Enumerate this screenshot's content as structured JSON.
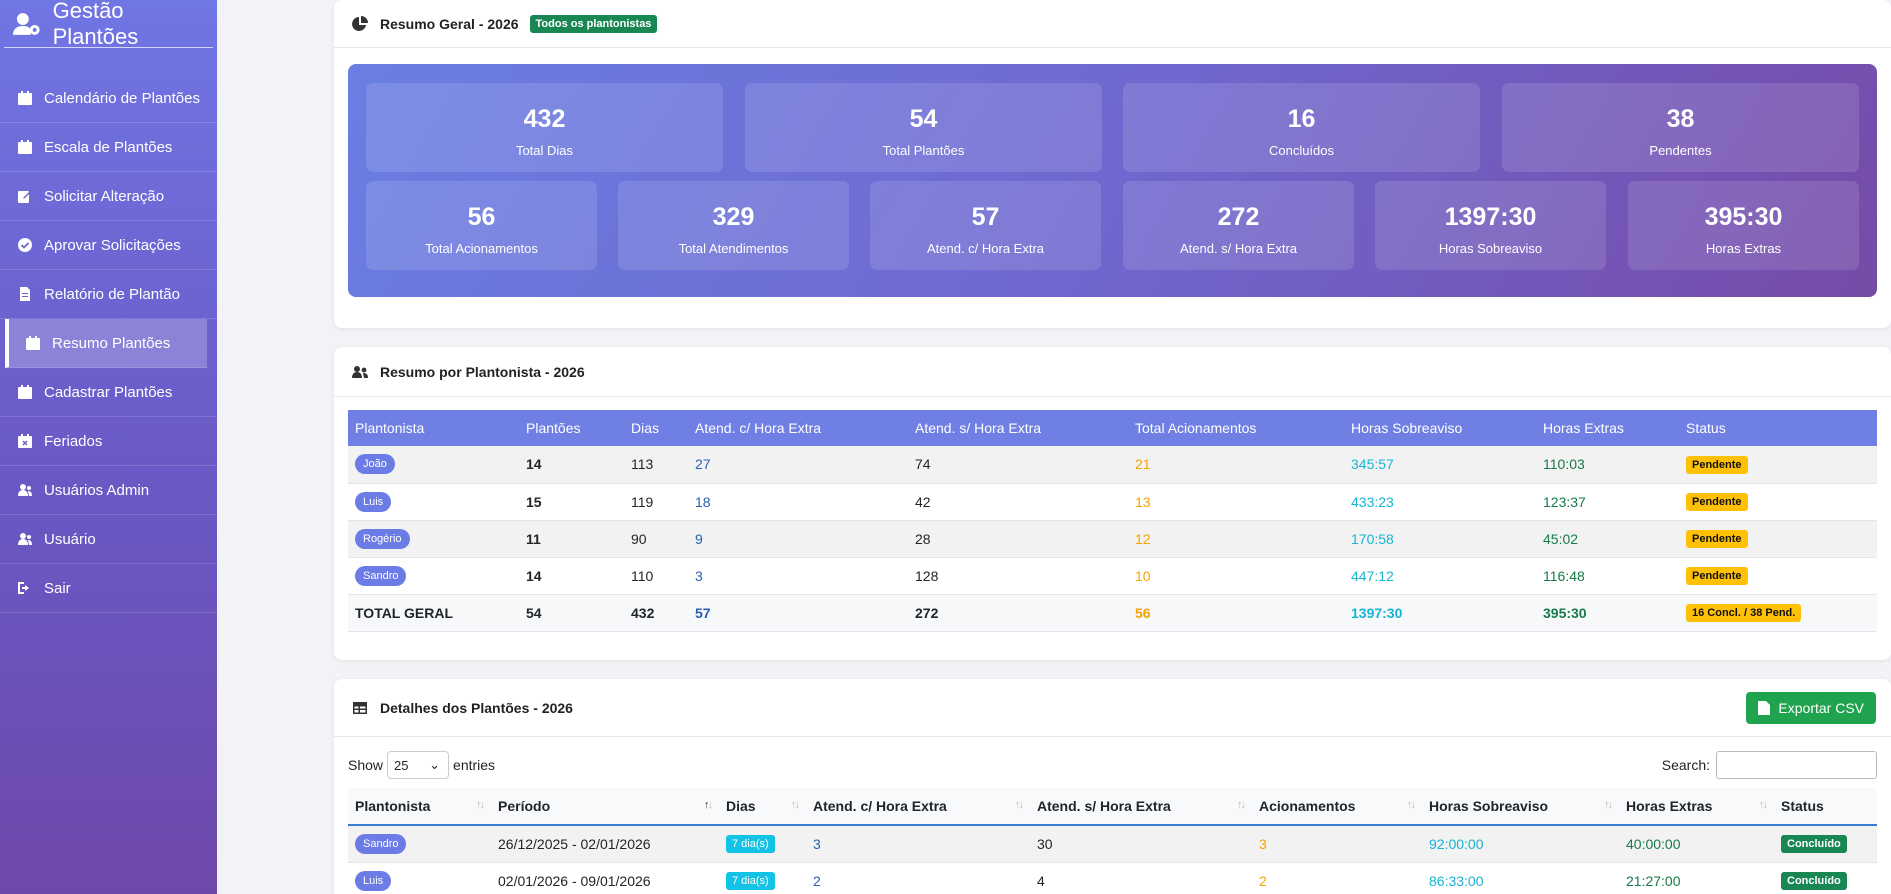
{
  "app": {
    "brand": "Gestão Plantões"
  },
  "sidebar": {
    "items": [
      {
        "label": "Calendário de Plantões",
        "icon": "calendar-icon"
      },
      {
        "label": "Escala de Plantões",
        "icon": "calendar-icon"
      },
      {
        "label": "Solicitar Alteração",
        "icon": "edit-icon"
      },
      {
        "label": "Aprovar Solicitações",
        "icon": "check-circle-icon"
      },
      {
        "label": "Relatório de Plantão",
        "icon": "file-icon"
      },
      {
        "label": "Resumo Plantões",
        "icon": "calendar-icon",
        "active": true
      },
      {
        "label": "Cadastrar Plantões",
        "icon": "calendar-icon"
      },
      {
        "label": "Feriados",
        "icon": "calendar-x-icon"
      },
      {
        "label": "Usuários Admin",
        "icon": "users-icon"
      },
      {
        "label": "Usuário",
        "icon": "users-icon"
      },
      {
        "label": "Sair",
        "icon": "sign-out-icon"
      }
    ]
  },
  "resumo_geral": {
    "title": "Resumo Geral - 2026",
    "badge": "Todos os plantonistas",
    "stats_row1": [
      {
        "value": "432",
        "label": "Total Dias"
      },
      {
        "value": "54",
        "label": "Total Plantões"
      },
      {
        "value": "16",
        "label": "Concluídos"
      },
      {
        "value": "38",
        "label": "Pendentes"
      }
    ],
    "stats_row2": [
      {
        "value": "56",
        "label": "Total Acionamentos"
      },
      {
        "value": "329",
        "label": "Total Atendimentos"
      },
      {
        "value": "57",
        "label": "Atend. c/ Hora Extra"
      },
      {
        "value": "272",
        "label": "Atend. s/ Hora Extra"
      },
      {
        "value": "1397:30",
        "label": "Horas Sobreaviso"
      },
      {
        "value": "395:30",
        "label": "Horas Extras"
      }
    ]
  },
  "resumo_plantonista": {
    "title": "Resumo por Plantonista - 2026",
    "columns": [
      "Plantonista",
      "Plantões",
      "Dias",
      "Atend. c/ Hora Extra",
      "Atend. s/ Hora Extra",
      "Total Acionamentos",
      "Horas Sobreaviso",
      "Horas Extras",
      "Status"
    ],
    "rows": [
      {
        "name": "João",
        "plantoes": "14",
        "dias": "113",
        "com_he": "27",
        "sem_he": "74",
        "acion": "21",
        "sobreaviso": "345:57",
        "extras": "110:03",
        "status": "Pendente"
      },
      {
        "name": "Luis",
        "plantoes": "15",
        "dias": "119",
        "com_he": "18",
        "sem_he": "42",
        "acion": "13",
        "sobreaviso": "433:23",
        "extras": "123:37",
        "status": "Pendente"
      },
      {
        "name": "Rogério",
        "plantoes": "11",
        "dias": "90",
        "com_he": "9",
        "sem_he": "28",
        "acion": "12",
        "sobreaviso": "170:58",
        "extras": "45:02",
        "status": "Pendente"
      },
      {
        "name": "Sandro",
        "plantoes": "14",
        "dias": "110",
        "com_he": "3",
        "sem_he": "128",
        "acion": "10",
        "sobreaviso": "447:12",
        "extras": "116:48",
        "status": "Pendente"
      }
    ],
    "total": {
      "label": "TOTAL GERAL",
      "plantoes": "54",
      "dias": "432",
      "com_he": "57",
      "sem_he": "272",
      "acion": "56",
      "sobreaviso": "1397:30",
      "extras": "395:30",
      "status": "16 Concl. / 38 Pend."
    }
  },
  "detalhes": {
    "title": "Detalhes dos Plantões - 2026",
    "export_label": "Exportar CSV",
    "show_label": "Show",
    "entries_value": "25",
    "entries_label": "entries",
    "search_label": "Search:",
    "columns": [
      "Plantonista",
      "Período",
      "Dias",
      "Atend. c/ Hora Extra",
      "Atend. s/ Hora Extra",
      "Acionamentos",
      "Horas Sobreaviso",
      "Horas Extras",
      "Status"
    ],
    "rows": [
      {
        "name": "Sandro",
        "periodo": "26/12/2025 - 02/01/2026",
        "dias": "7 dia(s)",
        "com_he": "3",
        "sem_he": "30",
        "acion": "3",
        "sobreaviso": "92:00:00",
        "extras": "40:00:00",
        "status": "Concluído"
      },
      {
        "name": "Luis",
        "periodo": "02/01/2026 - 09/01/2026",
        "dias": "7 dia(s)",
        "com_he": "2",
        "sem_he": "4",
        "acion": "2",
        "sobreaviso": "86:33:00",
        "extras": "21:27:00",
        "status": "Concluído"
      }
    ]
  },
  "colors": {
    "accent": "#6f7fe4",
    "pending": "#ffc107",
    "done": "#198754",
    "cyan": "#17b5d3",
    "orange": "#f5a300"
  }
}
